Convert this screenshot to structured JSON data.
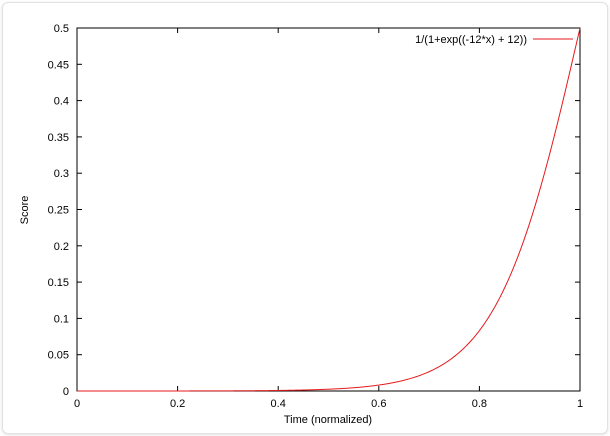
{
  "chart_data": {
    "type": "line",
    "title": "",
    "xlabel": "Time (normalized)",
    "ylabel": "Score",
    "xlim": [
      0,
      1
    ],
    "ylim": [
      0,
      0.5
    ],
    "x_ticks": [
      "0",
      "0.2",
      "0.4",
      "0.6",
      "0.8",
      "1"
    ],
    "y_ticks": [
      "0",
      "0.05",
      "0.1",
      "0.15",
      "0.2",
      "0.25",
      "0.3",
      "0.35",
      "0.4",
      "0.45",
      "0.5"
    ],
    "legend_position": "top-right",
    "grid": false,
    "series": [
      {
        "name": "1/(1+exp((-12*x) + 12))",
        "color": "#e41a1c",
        "x": [
          0,
          0.1,
          0.2,
          0.3,
          0.4,
          0.5,
          0.55,
          0.6,
          0.65,
          0.7,
          0.75,
          0.8,
          0.85,
          0.9,
          0.95,
          1.0
        ],
        "y": [
          6.1e-06,
          2.03e-05,
          6.77e-05,
          0.000226,
          0.000751,
          0.00247,
          0.00449,
          0.00816,
          0.0148,
          0.0266,
          0.0474,
          0.0832,
          0.142,
          0.232,
          0.354,
          0.5
        ]
      }
    ]
  }
}
